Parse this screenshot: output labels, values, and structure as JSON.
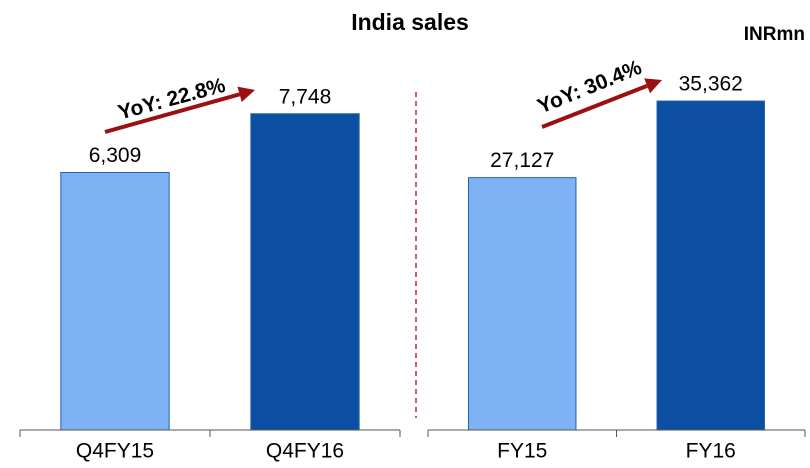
{
  "title": "India sales",
  "unit": "INRmn",
  "chart_data": [
    {
      "type": "bar",
      "categories": [
        "Q4FY15",
        "Q4FY16"
      ],
      "values": [
        6309,
        7748
      ],
      "value_labels": [
        "6,309",
        "7,748"
      ],
      "colors": [
        "#7fb2f5",
        "#0b4ea2"
      ],
      "ylim": [
        0,
        9800
      ],
      "annotation": "YoY: 22.8%"
    },
    {
      "type": "bar",
      "categories": [
        "FY15",
        "FY16"
      ],
      "values": [
        27127,
        35362
      ],
      "value_labels": [
        "27,127",
        "35,362"
      ],
      "colors": [
        "#7fb2f5",
        "#0b4ea2"
      ],
      "ylim": [
        0,
        43000
      ],
      "annotation": "YoY: 30.4%"
    }
  ]
}
